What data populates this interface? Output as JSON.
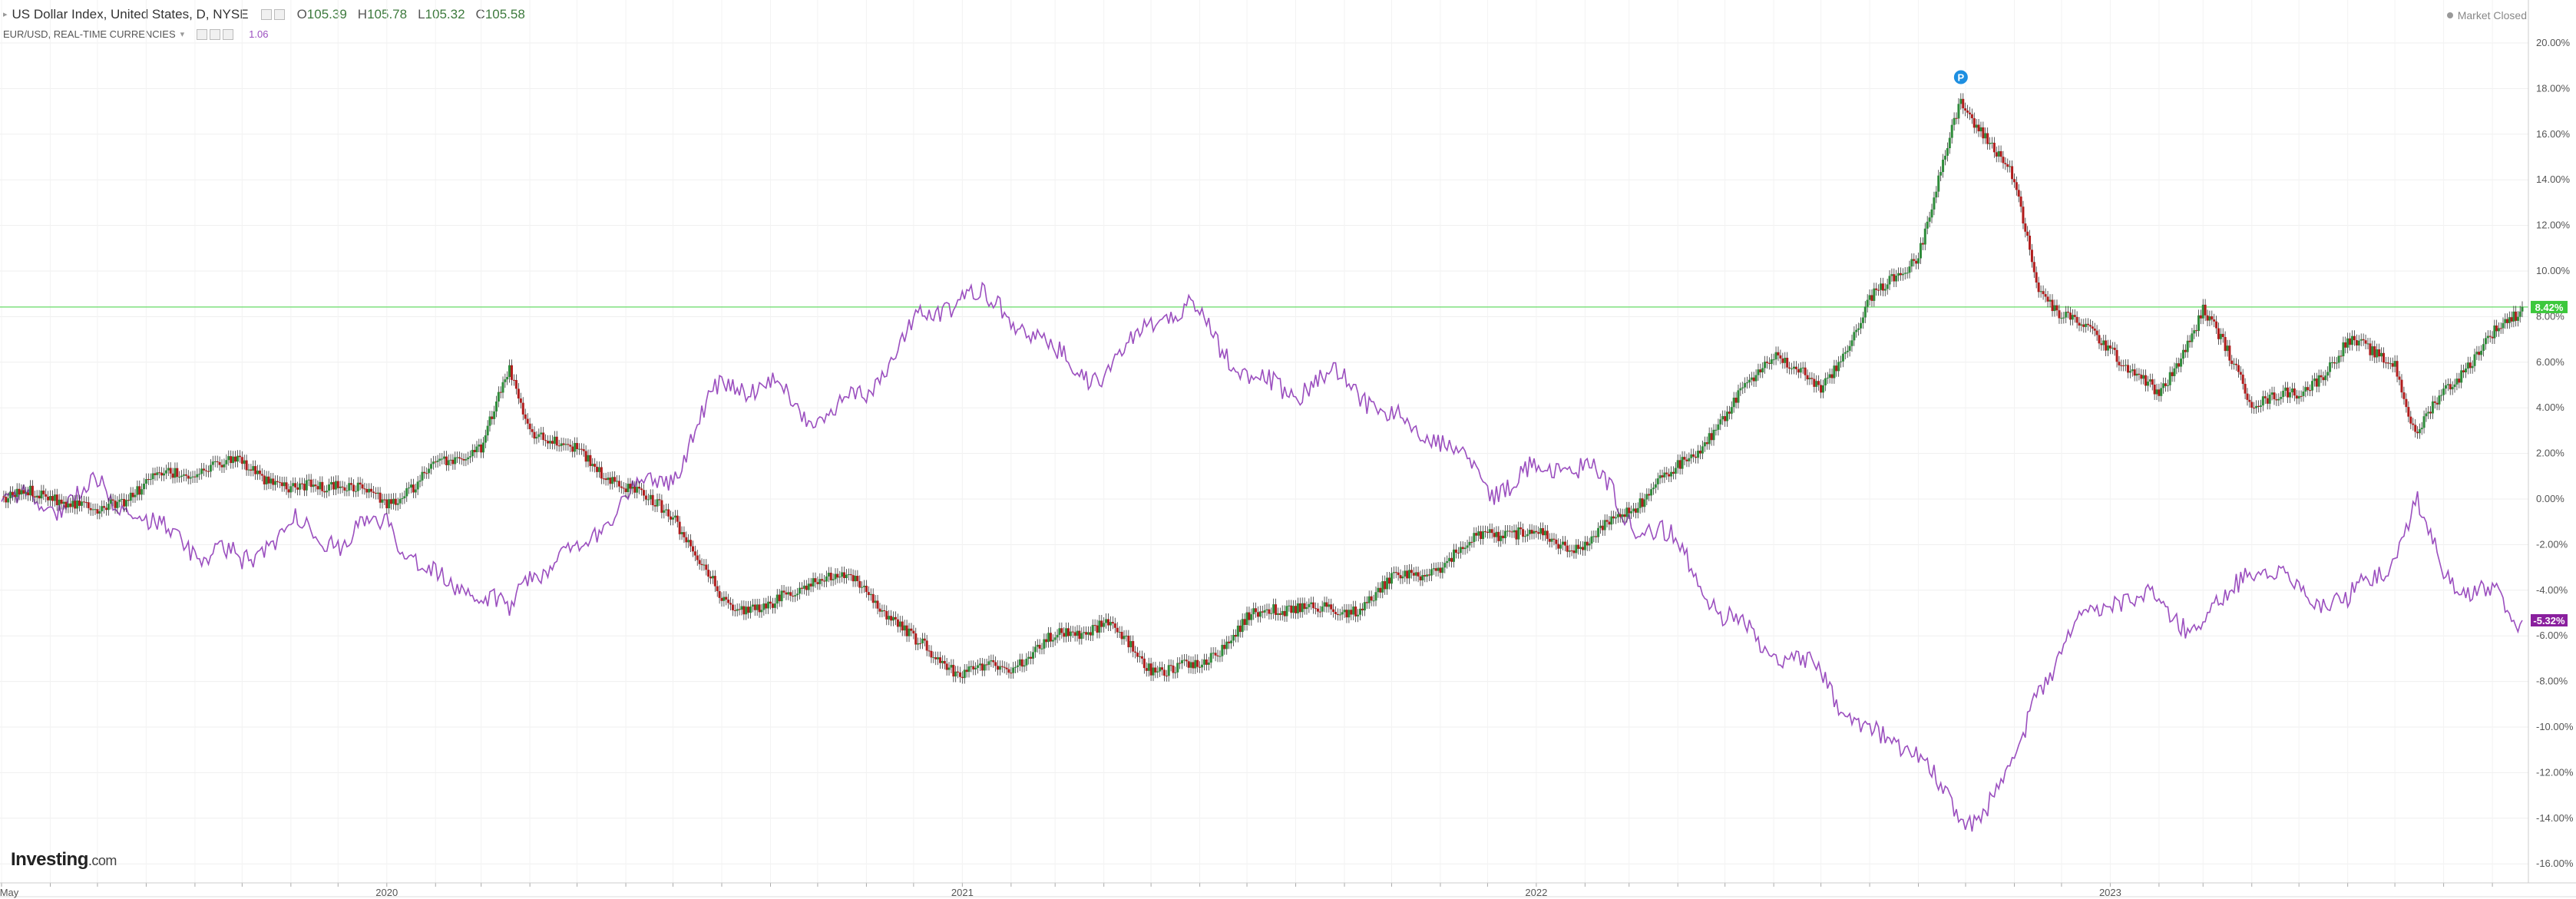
{
  "header": {
    "title": "US Dollar Index, United States, D, NYSE",
    "ohlc": [
      {
        "key": "O",
        "value": "105.39"
      },
      {
        "key": "H",
        "value": "105.78"
      },
      {
        "key": "L",
        "value": "105.32"
      },
      {
        "key": "C",
        "value": "105.58"
      }
    ],
    "compare_label": "EUR/USD, REAL-TIME CURRENCIES",
    "compare_value": "1.06"
  },
  "status": "Market Closed",
  "logo": {
    "main": "Investing",
    "suffix": ".com"
  },
  "colors": {
    "up": "#2e8b3a",
    "down": "#b01c1c",
    "compare": "#9b4fbf",
    "current_line": "#7fe07f",
    "current_tag": "#3cc83c",
    "compare_tag": "#8a1f9e"
  },
  "chart_data": {
    "type": "candlestick+line",
    "y_unit": "percent change",
    "ylim": [
      -17,
      21
    ],
    "y_ticks": [
      20,
      18,
      16,
      14,
      12,
      10,
      8,
      6,
      4,
      2,
      0,
      -2,
      -4,
      -6,
      -8,
      -10,
      -12,
      -14,
      -16
    ],
    "y_tick_labels": [
      "20.00%",
      "18.00%",
      "16.00%",
      "14.00%",
      "12.00%",
      "10.00%",
      "8.00%",
      "6.00%",
      "4.00%",
      "2.00%",
      "0.00%",
      "-2.00%",
      "-4.00%",
      "-6.00%",
      "-8.00%",
      "-10.00%",
      "-12.00%",
      "-14.00%",
      "-16.00%"
    ],
    "x_range": [
      "2019-05-01",
      "2023-09-20"
    ],
    "x_ticks": [
      {
        "date": "2019-05-01",
        "label": "May"
      },
      {
        "date": "2020-01-01",
        "label": "2020"
      },
      {
        "date": "2021-01-01",
        "label": "2021"
      },
      {
        "date": "2022-01-01",
        "label": "2022"
      },
      {
        "date": "2023-01-01",
        "label": "2023"
      }
    ],
    "current_value": {
      "value": 8.42,
      "label": "8.42%"
    },
    "compare_current": {
      "value": -5.32,
      "label": "-5.32%"
    },
    "series": [
      {
        "name": "US Dollar Index",
        "kind": "candlestick",
        "points": [
          [
            "2019-05-01",
            0.0
          ],
          [
            "2019-06-01",
            0.3
          ],
          [
            "2019-07-01",
            -0.6
          ],
          [
            "2019-08-01",
            0.7
          ],
          [
            "2019-09-01",
            1.3
          ],
          [
            "2019-10-01",
            1.6
          ],
          [
            "2019-11-01",
            0.3
          ],
          [
            "2019-12-01",
            0.8
          ],
          [
            "2020-01-01",
            -0.2
          ],
          [
            "2020-02-01",
            1.3
          ],
          [
            "2020-03-01",
            2.4
          ],
          [
            "2020-03-19",
            5.5
          ],
          [
            "2020-04-01",
            3.2
          ],
          [
            "2020-05-01",
            2.0
          ],
          [
            "2020-06-01",
            0.5
          ],
          [
            "2020-07-01",
            -0.6
          ],
          [
            "2020-08-01",
            -4.5
          ],
          [
            "2020-09-01",
            -4.8
          ],
          [
            "2020-10-01",
            -3.3
          ],
          [
            "2020-11-01",
            -3.9
          ],
          [
            "2020-12-01",
            -6.3
          ],
          [
            "2021-01-01",
            -7.6
          ],
          [
            "2021-02-01",
            -7.3
          ],
          [
            "2021-03-01",
            -6.1
          ],
          [
            "2021-04-01",
            -5.4
          ],
          [
            "2021-05-01",
            -7.4
          ],
          [
            "2021-06-01",
            -7.4
          ],
          [
            "2021-07-01",
            -5.3
          ],
          [
            "2021-08-01",
            -4.6
          ],
          [
            "2021-09-01",
            -5.1
          ],
          [
            "2021-10-01",
            -3.6
          ],
          [
            "2021-11-01",
            -3.0
          ],
          [
            "2021-12-01",
            -1.4
          ],
          [
            "2022-01-01",
            -1.6
          ],
          [
            "2022-02-01",
            -2.1
          ],
          [
            "2022-03-01",
            -0.4
          ],
          [
            "2022-04-01",
            1.3
          ],
          [
            "2022-05-01",
            3.6
          ],
          [
            "2022-06-01",
            6.5
          ],
          [
            "2022-07-01",
            4.7
          ],
          [
            "2022-08-01",
            8.6
          ],
          [
            "2022-09-01",
            10.8
          ],
          [
            "2022-09-28",
            17.4
          ],
          [
            "2022-10-15",
            15.9
          ],
          [
            "2022-11-01",
            13.9
          ],
          [
            "2022-11-15",
            9.5
          ],
          [
            "2022-12-01",
            8.1
          ],
          [
            "2023-01-01",
            6.7
          ],
          [
            "2023-02-01",
            4.4
          ],
          [
            "2023-03-01",
            8.3
          ],
          [
            "2023-04-01",
            4.4
          ],
          [
            "2023-05-01",
            4.5
          ],
          [
            "2023-06-01",
            6.8
          ],
          [
            "2023-07-01",
            6.1
          ],
          [
            "2023-07-14",
            2.6
          ],
          [
            "2023-08-01",
            4.8
          ],
          [
            "2023-09-01",
            7.1
          ],
          [
            "2023-09-20",
            8.42
          ]
        ]
      },
      {
        "name": "EUR/USD",
        "kind": "line",
        "points": [
          [
            "2019-05-01",
            0.0
          ],
          [
            "2019-06-01",
            -0.3
          ],
          [
            "2019-07-01",
            0.6
          ],
          [
            "2019-08-01",
            -1.1
          ],
          [
            "2019-09-01",
            -2.1
          ],
          [
            "2019-10-01",
            -2.8
          ],
          [
            "2019-11-01",
            -1.1
          ],
          [
            "2019-12-01",
            -1.8
          ],
          [
            "2020-01-01",
            -1.0
          ],
          [
            "2020-02-01",
            -3.6
          ],
          [
            "2020-03-01",
            -4.2
          ],
          [
            "2020-03-19",
            -5.0
          ],
          [
            "2020-04-01",
            -3.1
          ],
          [
            "2020-05-01",
            -2.4
          ],
          [
            "2020-06-01",
            0.2
          ],
          [
            "2020-07-01",
            1.1
          ],
          [
            "2020-08-01",
            5.1
          ],
          [
            "2020-09-01",
            5.0
          ],
          [
            "2020-10-01",
            3.5
          ],
          [
            "2020-11-01",
            4.6
          ],
          [
            "2020-12-01",
            7.6
          ],
          [
            "2021-01-01",
            9.1
          ],
          [
            "2021-02-01",
            8.1
          ],
          [
            "2021-03-01",
            6.3
          ],
          [
            "2021-04-01",
            5.2
          ],
          [
            "2021-05-01",
            8.0
          ],
          [
            "2021-06-01",
            8.2
          ],
          [
            "2021-07-01",
            5.3
          ],
          [
            "2021-08-01",
            4.8
          ],
          [
            "2021-09-01",
            5.4
          ],
          [
            "2021-10-01",
            3.4
          ],
          [
            "2021-11-01",
            2.7
          ],
          [
            "2021-12-01",
            0.4
          ],
          [
            "2022-01-01",
            1.2
          ],
          [
            "2022-02-01",
            1.6
          ],
          [
            "2022-03-01",
            -0.8
          ],
          [
            "2022-04-01",
            -2.0
          ],
          [
            "2022-05-01",
            -5.3
          ],
          [
            "2022-06-01",
            -6.5
          ],
          [
            "2022-07-01",
            -7.7
          ],
          [
            "2022-08-01",
            -10.5
          ],
          [
            "2022-09-01",
            -11.0
          ],
          [
            "2022-09-28",
            -14.5
          ],
          [
            "2022-10-15",
            -13.2
          ],
          [
            "2022-11-01",
            -12.0
          ],
          [
            "2022-11-15",
            -8.5
          ],
          [
            "2022-12-01",
            -6.5
          ],
          [
            "2023-01-01",
            -4.2
          ],
          [
            "2023-02-01",
            -4.6
          ],
          [
            "2023-03-01",
            -5.8
          ],
          [
            "2023-04-01",
            -2.8
          ],
          [
            "2023-05-01",
            -3.9
          ],
          [
            "2023-06-01",
            -4.6
          ],
          [
            "2023-07-01",
            -2.6
          ],
          [
            "2023-07-14",
            -0.1
          ],
          [
            "2023-08-01",
            -3.3
          ],
          [
            "2023-09-01",
            -4.3
          ],
          [
            "2023-09-20",
            -5.32
          ]
        ]
      }
    ],
    "annotations": [
      {
        "date": "2022-09-28",
        "label": "P"
      }
    ]
  }
}
